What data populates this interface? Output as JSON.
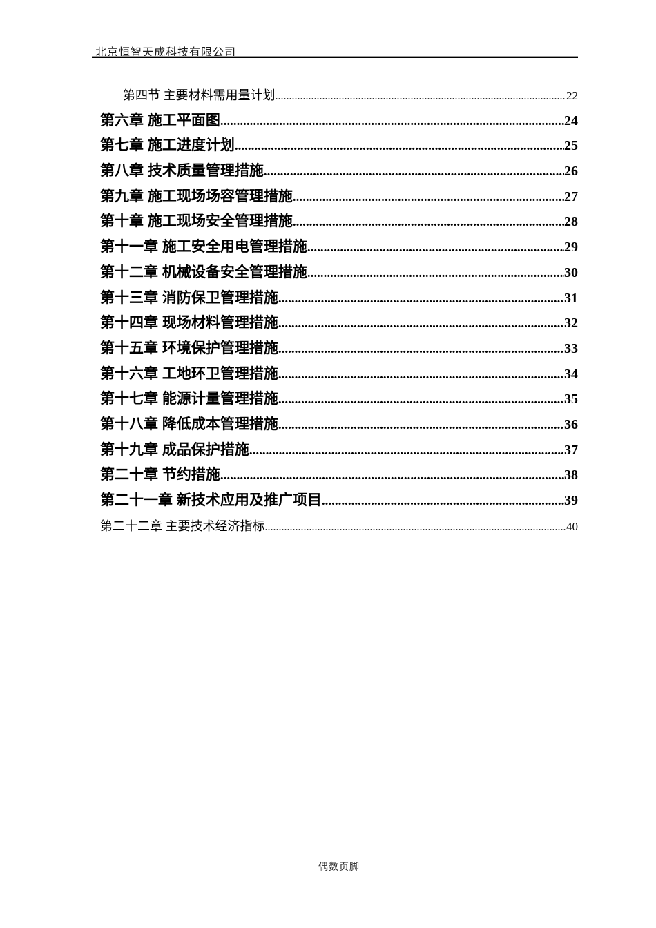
{
  "page": {
    "header": {
      "company_name": "北京恒智天成科技有限公司"
    },
    "footer": {
      "text": "偶数页脚"
    }
  },
  "toc": {
    "entries": [
      {
        "title": "第四节 主要材料需用量计划",
        "page": "22",
        "level": 2,
        "bold": false
      },
      {
        "title": "第六章 施工平面图",
        "page": "24",
        "level": 1,
        "bold": true
      },
      {
        "title": "第七章 施工进度计划",
        "page": "25",
        "level": 1,
        "bold": true
      },
      {
        "title": "第八章 技术质量管理措施",
        "page": "26",
        "level": 1,
        "bold": true
      },
      {
        "title": "第九章 施工现场场容管理措施",
        "page": "27",
        "level": 1,
        "bold": true
      },
      {
        "title": "第十章 施工现场安全管理措施",
        "page": "28",
        "level": 1,
        "bold": true
      },
      {
        "title": "第十一章 施工安全用电管理措施",
        "page": "29",
        "level": 1,
        "bold": true
      },
      {
        "title": "第十二章 机械设备安全管理措施",
        "page": "30",
        "level": 1,
        "bold": true
      },
      {
        "title": "第十三章 消防保卫管理措施",
        "page": "31",
        "level": 1,
        "bold": true
      },
      {
        "title": "第十四章 现场材料管理措施",
        "page": "32",
        "level": 1,
        "bold": true
      },
      {
        "title": "第十五章 环境保护管理措施",
        "page": "33",
        "level": 1,
        "bold": true
      },
      {
        "title": "第十六章 工地环卫管理措施",
        "page": "34",
        "level": 1,
        "bold": true
      },
      {
        "title": "第十七章 能源计量管理措施",
        "page": "35",
        "level": 1,
        "bold": true
      },
      {
        "title": "第十八章 降低成本管理措施",
        "page": "36",
        "level": 1,
        "bold": true
      },
      {
        "title": "第十九章 成品保护措施",
        "page": "37",
        "level": 1,
        "bold": true
      },
      {
        "title": "第二十章 节约措施",
        "page": "38",
        "level": 1,
        "bold": true
      },
      {
        "title": "第二十一章 新技术应用及推广项目",
        "page": "39",
        "level": 1,
        "bold": true
      },
      {
        "title": "第二十二章 主要技术经济指标",
        "page": "40",
        "level": 1,
        "bold": false
      }
    ]
  }
}
